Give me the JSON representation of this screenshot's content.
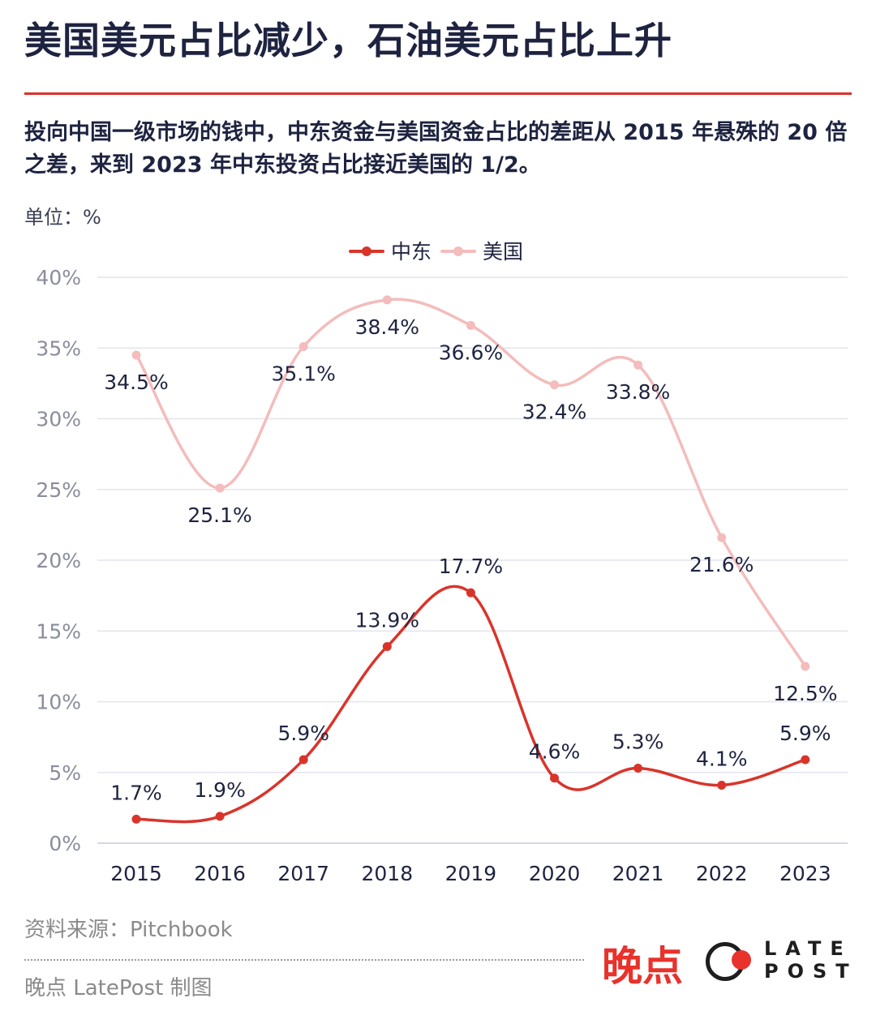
{
  "title": "美国美元占比减少，石油美元占比上升",
  "subtitle": "投向中国一级市场的钱中，中东资金与美国资金占比的差距从 2015 年悬殊的 20 倍之差，来到 2023 年中东投资占比接近美国的 1/2。",
  "unit_label": "单位：%",
  "source": "资料来源：Pitchbook",
  "credit": "晚点 LatePost 制图",
  "logo": {
    "cn": "晚点",
    "en_top": "LATE",
    "en_bottom": "POST"
  },
  "colors": {
    "middle_east": "#d9342b",
    "usa": "#f4bcbc",
    "accent": "#d9342b"
  },
  "chart_data": {
    "type": "line",
    "categories": [
      "2015",
      "2016",
      "2017",
      "2018",
      "2019",
      "2020",
      "2021",
      "2022",
      "2023"
    ],
    "series": [
      {
        "name": "中东",
        "values": [
          1.7,
          1.9,
          5.9,
          13.9,
          17.7,
          4.6,
          5.3,
          4.1,
          5.9
        ],
        "labels": [
          "1.7%",
          "1.9%",
          "5.9%",
          "13.9%",
          "17.7%",
          "4.6%",
          "5.3%",
          "4.1%",
          "5.9%"
        ]
      },
      {
        "name": "美国",
        "values": [
          34.5,
          25.1,
          35.1,
          38.4,
          36.6,
          32.4,
          33.8,
          21.6,
          12.5
        ],
        "labels": [
          "34.5%",
          "25.1%",
          "35.1%",
          "38.4%",
          "36.6%",
          "32.4%",
          "33.8%",
          "21.6%",
          "12.5%"
        ]
      }
    ],
    "y_ticks": [
      "0%",
      "5%",
      "10%",
      "15%",
      "20%",
      "25%",
      "30%",
      "35%",
      "40%"
    ],
    "ylim": [
      0,
      40
    ],
    "legend": [
      "中东",
      "美国"
    ],
    "grid": true
  }
}
